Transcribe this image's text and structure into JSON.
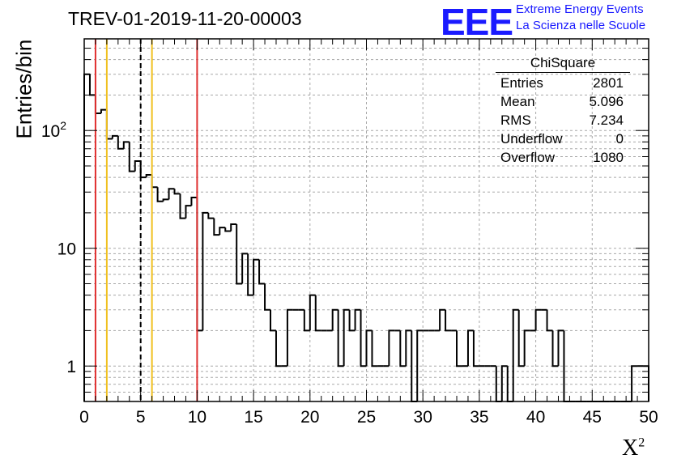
{
  "header": {
    "title": "TREV-01-2019-11-20-00003",
    "logo_text": "EEE",
    "logo_line1": "Extreme Energy Events",
    "logo_line2": "La Scienza nelle Scuole"
  },
  "stats": {
    "name": "ChiSquare",
    "rows": [
      {
        "label": "Entries",
        "value": "2801"
      },
      {
        "label": "Mean",
        "value": "5.096"
      },
      {
        "label": "RMS",
        "value": "7.234"
      },
      {
        "label": "Underflow",
        "value": "0"
      },
      {
        "label": "Overflow",
        "value": "1080"
      }
    ]
  },
  "chart_data": {
    "type": "histogram",
    "title": "TREV-01-2019-11-20-00003",
    "xlabel": "X",
    "xlabel_sup": "2",
    "ylabel": "Entries/bin",
    "xlim": [
      0,
      50
    ],
    "ylim": [
      0.5,
      600
    ],
    "yscale": "log",
    "bin_width": 0.5,
    "x_ticks": [
      0,
      5,
      10,
      15,
      20,
      25,
      30,
      35,
      40,
      45,
      50
    ],
    "y_ticks": [
      {
        "value": 1,
        "label": "1"
      },
      {
        "value": 10,
        "label": "10"
      },
      {
        "value": 100,
        "label": "10",
        "sup": "2"
      }
    ],
    "bin_values": [
      300,
      200,
      140,
      150,
      85,
      90,
      70,
      80,
      45,
      55,
      40,
      42,
      33,
      25,
      26,
      32,
      29,
      18,
      23,
      27,
      2,
      20,
      18,
      13,
      15,
      14,
      16,
      5,
      9,
      4,
      8,
      5,
      3,
      2,
      1,
      1,
      3,
      3,
      3,
      2,
      4,
      2,
      2,
      2,
      3,
      1,
      3,
      2,
      3,
      1,
      2,
      1,
      1,
      1,
      2,
      2,
      1,
      2,
      0,
      2,
      2,
      2,
      2,
      3,
      2,
      2,
      1,
      1,
      2,
      1,
      1,
      1,
      1,
      0,
      1,
      0,
      3,
      1,
      2,
      2,
      3,
      3,
      2,
      1,
      2,
      0,
      0,
      0,
      0,
      0,
      0,
      0,
      0,
      0,
      0,
      0,
      0,
      1,
      1,
      1
    ],
    "grid": true,
    "vertical_lines": [
      {
        "x": 1,
        "color": "#e03030",
        "style": "solid"
      },
      {
        "x": 2,
        "color": "#f0c020",
        "style": "solid"
      },
      {
        "x": 5,
        "color": "#000000",
        "style": "dashed"
      },
      {
        "x": 6,
        "color": "#f0c020",
        "style": "solid"
      },
      {
        "x": 10,
        "color": "#e03030",
        "style": "solid"
      }
    ]
  }
}
